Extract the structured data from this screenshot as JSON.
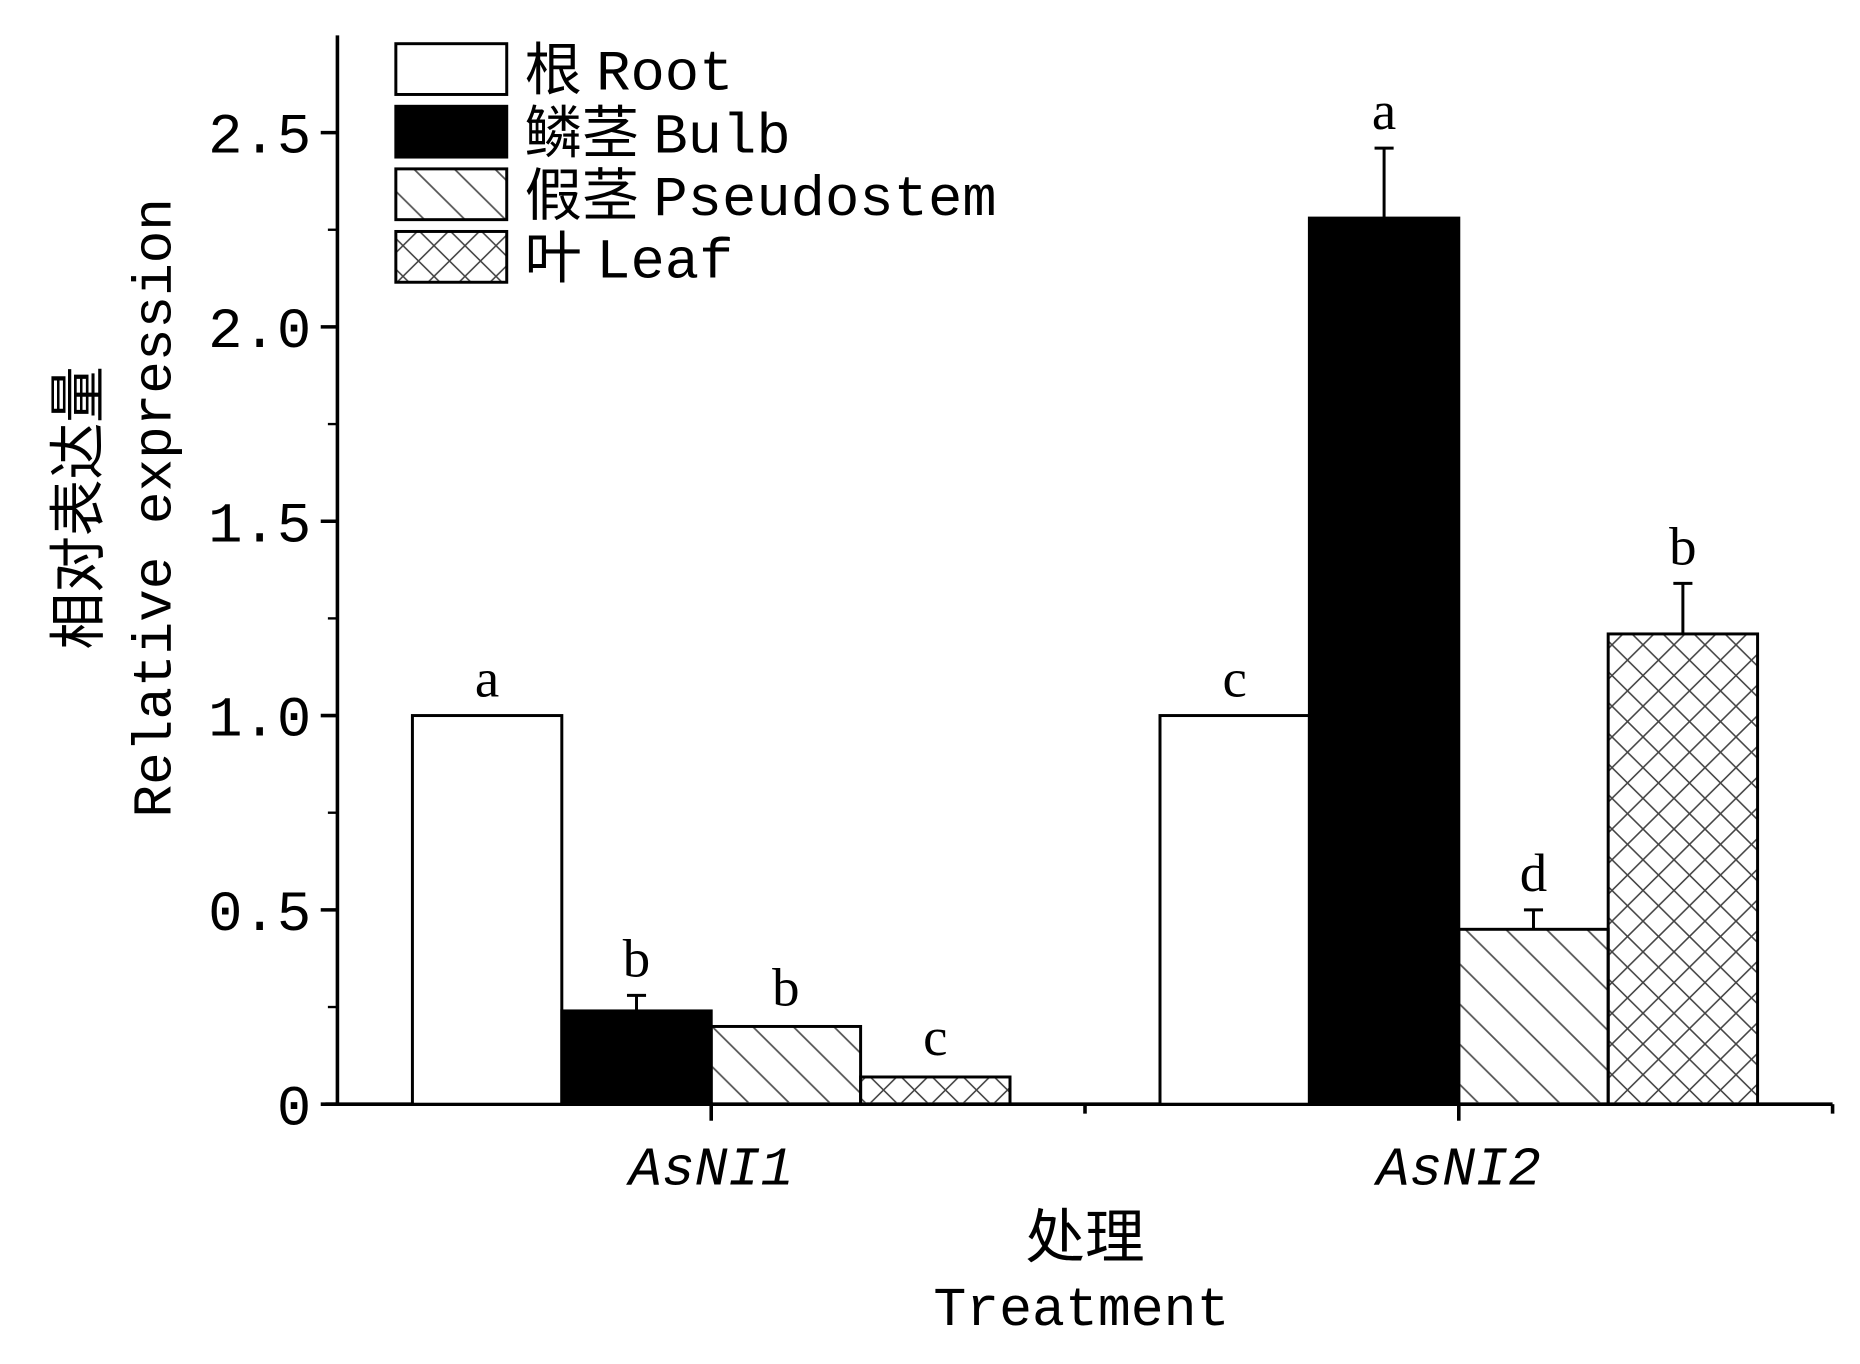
{
  "chart_data": {
    "type": "bar",
    "title": "",
    "xlabel_cn": "处理",
    "xlabel": "Treatment",
    "ylabel_cn": "相对表达量",
    "ylabel": "Relative expression",
    "ylim": [
      0,
      2.75
    ],
    "yticks": [
      "0",
      "0.5",
      "1.0",
      "1.5",
      "2.0",
      "2.5"
    ],
    "ytick_values": [
      0,
      0.5,
      1.0,
      1.5,
      2.0,
      2.5
    ],
    "categories": [
      "AsNI1",
      "AsNI2"
    ],
    "legend_position": "top-left",
    "series": [
      {
        "name": "根 Root",
        "name_cn": "根",
        "name_en": "Root",
        "fill": "#ffffff",
        "pattern": "none",
        "values": [
          1.0,
          1.0
        ],
        "errors": [
          0,
          0
        ],
        "letters": [
          "a",
          "c"
        ]
      },
      {
        "name": "鳞茎 Bulb",
        "name_cn": "鳞茎",
        "name_en": "Bulb",
        "fill": "#000000",
        "pattern": "solid",
        "values": [
          0.24,
          2.28
        ],
        "errors": [
          0.04,
          0.18
        ],
        "letters": [
          "b",
          "a"
        ]
      },
      {
        "name": "假茎 Pseudostem",
        "name_cn": "假茎",
        "name_en": "Pseudostem",
        "fill": "#ffffff",
        "pattern": "diagonal",
        "values": [
          0.2,
          0.45
        ],
        "errors": [
          0.005,
          0.05
        ],
        "letters": [
          "b",
          "d"
        ]
      },
      {
        "name": "叶 Leaf",
        "name_cn": "叶",
        "name_en": "Leaf",
        "fill": "#ffffff",
        "pattern": "crosshatch",
        "values": [
          0.07,
          1.21
        ],
        "errors": [
          0.008,
          0.13
        ],
        "letters": [
          "c",
          "b"
        ]
      }
    ]
  }
}
